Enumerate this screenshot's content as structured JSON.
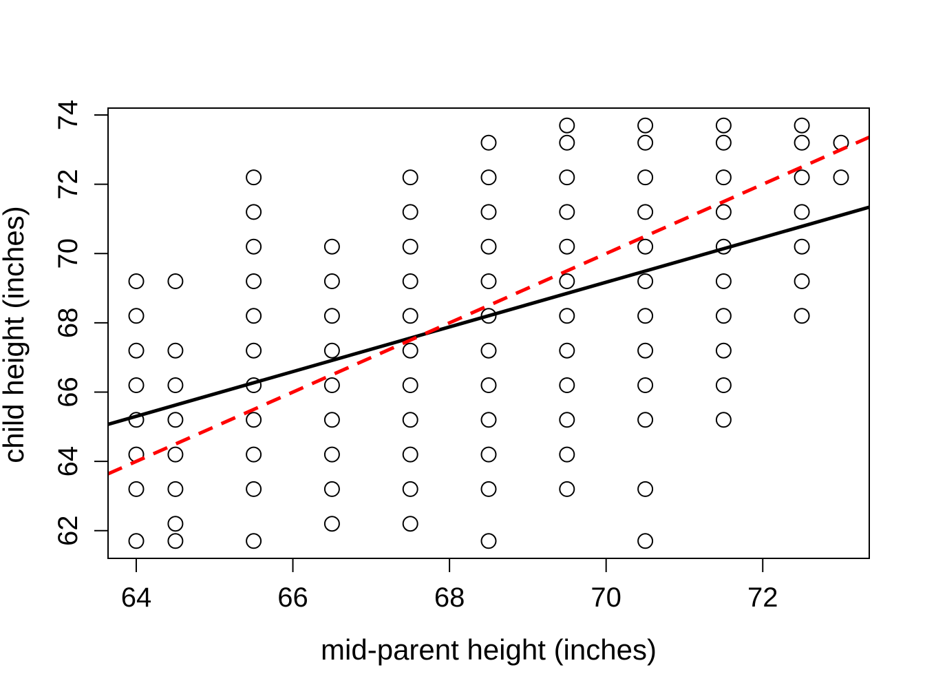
{
  "chart_data": {
    "type": "scatter",
    "title": "",
    "xlabel": "mid-parent height (inches)",
    "ylabel": "child height (inches)",
    "xlim": [
      63.64,
      73.36
    ],
    "ylim": [
      61.2,
      74.2
    ],
    "xticks": [
      64,
      66,
      68,
      70,
      72
    ],
    "yticks": [
      62,
      64,
      66,
      68,
      70,
      72,
      74
    ],
    "xtick_labels": [
      "64",
      "66",
      "68",
      "70",
      "72"
    ],
    "ytick_labels": [
      "62",
      "64",
      "66",
      "68",
      "70",
      "72",
      "74"
    ],
    "grid": false,
    "legend": "none",
    "marker": "open-circle",
    "point_color": "#000000",
    "points": [
      [
        64,
        69.2
      ],
      [
        64,
        68.2
      ],
      [
        64,
        67.2
      ],
      [
        64,
        66.2
      ],
      [
        64,
        65.2
      ],
      [
        64,
        64.2
      ],
      [
        64,
        63.2
      ],
      [
        64,
        61.7
      ],
      [
        64.5,
        69.2
      ],
      [
        64.5,
        67.2
      ],
      [
        64.5,
        66.2
      ],
      [
        64.5,
        65.2
      ],
      [
        64.5,
        64.2
      ],
      [
        64.5,
        63.2
      ],
      [
        64.5,
        62.2
      ],
      [
        64.5,
        61.7
      ],
      [
        65.5,
        72.2
      ],
      [
        65.5,
        71.2
      ],
      [
        65.5,
        70.2
      ],
      [
        65.5,
        69.2
      ],
      [
        65.5,
        68.2
      ],
      [
        65.5,
        67.2
      ],
      [
        65.5,
        66.2
      ],
      [
        65.5,
        65.2
      ],
      [
        65.5,
        64.2
      ],
      [
        65.5,
        63.2
      ],
      [
        65.5,
        61.7
      ],
      [
        66.5,
        70.2
      ],
      [
        66.5,
        69.2
      ],
      [
        66.5,
        68.2
      ],
      [
        66.5,
        67.2
      ],
      [
        66.5,
        66.2
      ],
      [
        66.5,
        65.2
      ],
      [
        66.5,
        64.2
      ],
      [
        66.5,
        63.2
      ],
      [
        66.5,
        62.2
      ],
      [
        67.5,
        72.2
      ],
      [
        67.5,
        71.2
      ],
      [
        67.5,
        70.2
      ],
      [
        67.5,
        69.2
      ],
      [
        67.5,
        68.2
      ],
      [
        67.5,
        67.2
      ],
      [
        67.5,
        66.2
      ],
      [
        67.5,
        65.2
      ],
      [
        67.5,
        64.2
      ],
      [
        67.5,
        63.2
      ],
      [
        67.5,
        62.2
      ],
      [
        68.5,
        73.2
      ],
      [
        68.5,
        72.2
      ],
      [
        68.5,
        71.2
      ],
      [
        68.5,
        70.2
      ],
      [
        68.5,
        69.2
      ],
      [
        68.5,
        68.2
      ],
      [
        68.5,
        67.2
      ],
      [
        68.5,
        66.2
      ],
      [
        68.5,
        65.2
      ],
      [
        68.5,
        64.2
      ],
      [
        68.5,
        63.2
      ],
      [
        68.5,
        61.7
      ],
      [
        69.5,
        73.7
      ],
      [
        69.5,
        73.2
      ],
      [
        69.5,
        72.2
      ],
      [
        69.5,
        71.2
      ],
      [
        69.5,
        70.2
      ],
      [
        69.5,
        69.2
      ],
      [
        69.5,
        68.2
      ],
      [
        69.5,
        67.2
      ],
      [
        69.5,
        66.2
      ],
      [
        69.5,
        65.2
      ],
      [
        69.5,
        64.2
      ],
      [
        69.5,
        63.2
      ],
      [
        70.5,
        73.7
      ],
      [
        70.5,
        73.2
      ],
      [
        70.5,
        72.2
      ],
      [
        70.5,
        71.2
      ],
      [
        70.5,
        70.2
      ],
      [
        70.5,
        69.2
      ],
      [
        70.5,
        68.2
      ],
      [
        70.5,
        67.2
      ],
      [
        70.5,
        66.2
      ],
      [
        70.5,
        65.2
      ],
      [
        70.5,
        63.2
      ],
      [
        70.5,
        61.7
      ],
      [
        71.5,
        73.7
      ],
      [
        71.5,
        73.2
      ],
      [
        71.5,
        72.2
      ],
      [
        71.5,
        71.2
      ],
      [
        71.5,
        70.2
      ],
      [
        71.5,
        69.2
      ],
      [
        71.5,
        68.2
      ],
      [
        71.5,
        67.2
      ],
      [
        71.5,
        66.2
      ],
      [
        71.5,
        65.2
      ],
      [
        72.5,
        73.7
      ],
      [
        72.5,
        73.2
      ],
      [
        72.5,
        72.2
      ],
      [
        72.5,
        71.2
      ],
      [
        72.5,
        70.2
      ],
      [
        72.5,
        69.2
      ],
      [
        72.5,
        68.2
      ],
      [
        73,
        73.2
      ],
      [
        73,
        72.2
      ]
    ],
    "lines": [
      {
        "style": "solid",
        "color": "#000000",
        "x": [
          63.64,
          73.36
        ],
        "y": [
          65.07,
          71.34
        ]
      },
      {
        "style": "dashed",
        "color": "#ff0000",
        "x": [
          63.64,
          73.36
        ],
        "y": [
          63.64,
          73.36
        ]
      }
    ]
  }
}
